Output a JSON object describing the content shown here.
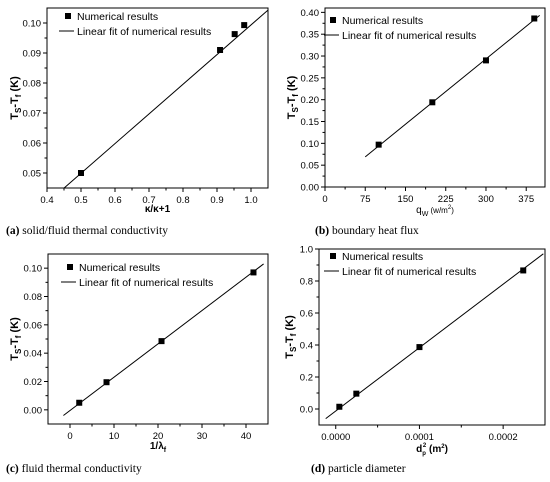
{
  "captions": [
    {
      "letter": "(a)",
      "text": " solid/fluid thermal conductivity"
    },
    {
      "letter": "(b)",
      "text": " boundary heat flux"
    },
    {
      "letter": "(c)",
      "text": " fluid thermal conductivity"
    },
    {
      "letter": "(d)",
      "text": " particle diameter"
    }
  ],
  "chart_data": [
    {
      "type": "scatter",
      "ylabel_main": "T",
      "ylabel_sub1": "S",
      "ylabel_mid": "-T",
      "ylabel_sub2": "f",
      "ylabel_unit": " (K)",
      "xlabel": "κ/κ+1",
      "xlim": [
        0.4,
        1.05
      ],
      "ylim": [
        0.045,
        0.105
      ],
      "xticks": [
        0.4,
        0.5,
        0.6,
        0.7,
        0.8,
        0.9,
        1.0
      ],
      "xtick_labels": [
        "0.4",
        "0.5",
        "0.6",
        "0.7",
        "0.8",
        "0.9",
        "1.0"
      ],
      "yticks": [
        0.05,
        0.06,
        0.07,
        0.08,
        0.09,
        0.1
      ],
      "ytick_labels": [
        "0.05",
        "0.06",
        "0.07",
        "0.08",
        "0.09",
        "0.10"
      ],
      "points": [
        [
          0.5,
          0.05
        ],
        [
          0.909,
          0.091
        ],
        [
          0.952,
          0.0963
        ],
        [
          0.98,
          0.0993
        ]
      ],
      "fit_line": [
        [
          0.415,
          0.0415
        ],
        [
          1.05,
          0.1043
        ]
      ],
      "legend": [
        "Numerical results",
        "Linear fit of numerical results"
      ],
      "legend_position": "top-left"
    },
    {
      "type": "scatter",
      "ylabel_main": "T",
      "ylabel_sub1": "S",
      "ylabel_mid": "-T",
      "ylabel_sub2": "f",
      "ylabel_unit": " (K)",
      "xlabel_main": "q",
      "xlabel_sub": "W",
      "xlabel_unit": " (w/m",
      "xlabel_sup": "2",
      "xlabel_close": ")",
      "xlim": [
        0,
        410
      ],
      "ylim": [
        0,
        0.41
      ],
      "xticks": [
        0,
        75,
        150,
        225,
        300,
        375
      ],
      "xtick_labels": [
        "0",
        "75",
        "150",
        "225",
        "300",
        "375"
      ],
      "yticks": [
        0.0,
        0.05,
        0.1,
        0.15,
        0.2,
        0.25,
        0.3,
        0.35,
        0.4
      ],
      "ytick_labels": [
        "0.00",
        "0.05",
        "0.10",
        "0.15",
        "0.20",
        "0.25",
        "0.30",
        "0.35",
        "0.40"
      ],
      "points": [
        [
          100,
          0.097
        ],
        [
          200,
          0.194
        ],
        [
          300,
          0.29
        ],
        [
          390,
          0.386
        ]
      ],
      "fit_line": [
        [
          75,
          0.069
        ],
        [
          400,
          0.393
        ]
      ],
      "legend": [
        "Numerical results",
        "Linear  fit of numerical results"
      ],
      "legend_position": "top-left"
    },
    {
      "type": "scatter",
      "ylabel_main": "T",
      "ylabel_sub1": "S",
      "ylabel_mid": "-T",
      "ylabel_sub2": "f",
      "ylabel_unit": " (K)",
      "xlabel_main": "1/λ",
      "xlabel_sub": "f",
      "xlim": [
        -5,
        45
      ],
      "ylim": [
        -0.01,
        0.11
      ],
      "xticks": [
        0,
        10,
        20,
        30,
        40
      ],
      "xtick_labels": [
        "0",
        "10",
        "20",
        "30",
        "40"
      ],
      "yticks": [
        0.0,
        0.02,
        0.04,
        0.06,
        0.08,
        0.1
      ],
      "ytick_labels": [
        "0.00",
        "0.02",
        "0.04",
        "0.06",
        "0.08",
        "0.10"
      ],
      "points": [
        [
          2.1,
          0.005
        ],
        [
          8.3,
          0.0195
        ],
        [
          20.8,
          0.0485
        ],
        [
          41.7,
          0.097
        ]
      ],
      "fit_line": [
        [
          -1.5,
          -0.004
        ],
        [
          44,
          0.103
        ]
      ],
      "legend": [
        "Numerical results",
        "Linear fit of numerical results"
      ],
      "legend_position": "top-left"
    },
    {
      "type": "scatter",
      "ylabel_main": "T",
      "ylabel_sub1": "S",
      "ylabel_mid": "-T",
      "ylabel_sub2": "f",
      "ylabel_unit": " (K)",
      "xlabel_main": "d",
      "xlabel_sub": "p",
      "xlabel_sup": "2",
      "xlabel_unit": " (m",
      "xlabel_sup2": "2",
      "xlabel_close": ")",
      "xlim": [
        -2e-05,
        0.00025
      ],
      "ylim": [
        -0.1,
        1.0
      ],
      "xticks": [
        0.0,
        0.0001,
        0.0002
      ],
      "xtick_labels": [
        "0.0000",
        "0.0001",
        "0.0002"
      ],
      "yticks": [
        0.0,
        0.2,
        0.4,
        0.6,
        0.8,
        1.0
      ],
      "ytick_labels": [
        "0.0",
        "0.2",
        "0.4",
        "0.6",
        "0.8",
        "1.0"
      ],
      "points": [
        [
          4.3e-06,
          0.014
        ],
        [
          2.46e-05,
          0.096
        ],
        [
          0.0001,
          0.387
        ],
        [
          0.000224,
          0.866
        ]
      ],
      "fit_line": [
        [
          -1.2e-05,
          -0.06
        ],
        [
          0.000248,
          0.97
        ]
      ],
      "legend": [
        "Numerical results",
        "Linear  fit of numerical results"
      ],
      "legend_position": "top-left"
    }
  ]
}
